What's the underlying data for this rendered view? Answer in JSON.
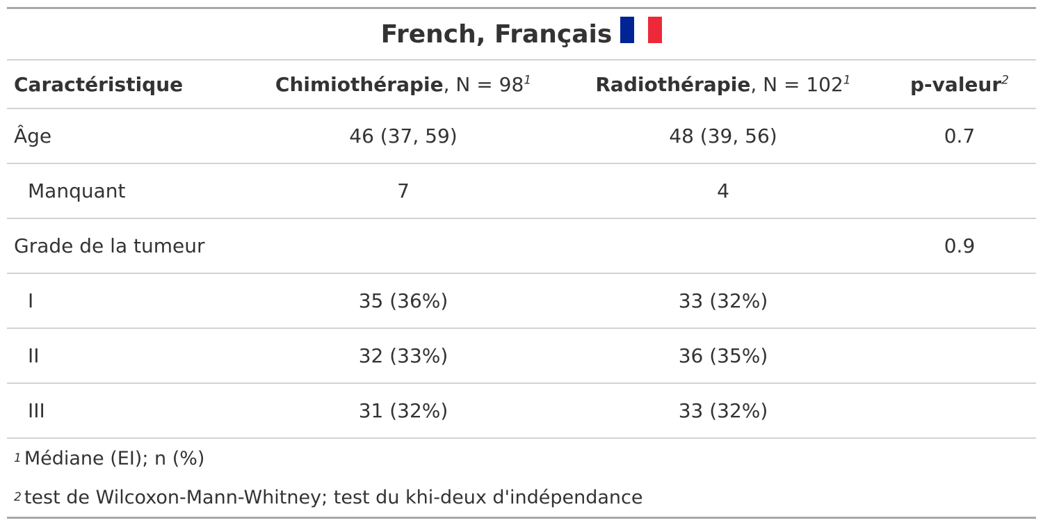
{
  "title": "French, Français",
  "flag": {
    "icon": "french-flag-icon",
    "colors": [
      "#002395",
      "#ffffff",
      "#ed2939"
    ]
  },
  "header": {
    "characteristic": "Caractéristique",
    "col1_name": "Chimiothérapie",
    "col1_n": ", N = 98",
    "col1_mark": "1",
    "col2_name": "Radiothérapie",
    "col2_n": ", N = 102",
    "col2_mark": "1",
    "pvalue": "p-valeur",
    "pvalue_mark": "2"
  },
  "rows": [
    {
      "label": "Âge",
      "c1": "46 (37, 59)",
      "c2": "48 (39, 56)",
      "p": "0.7"
    },
    {
      "label": "Manquant",
      "c1": "7",
      "c2": "4",
      "p": ""
    },
    {
      "label": "Grade de la tumeur",
      "c1": "",
      "c2": "",
      "p": "0.9"
    },
    {
      "label": "I",
      "c1": "35 (36%)",
      "c2": "33 (32%)",
      "p": ""
    },
    {
      "label": "II",
      "c1": "32 (33%)",
      "c2": "36 (35%)",
      "p": ""
    },
    {
      "label": "III",
      "c1": "31 (32%)",
      "c2": "33 (32%)",
      "p": ""
    }
  ],
  "footnotes": [
    {
      "mark": "1",
      "text": "Médiane (EI); n (%)"
    },
    {
      "mark": "2",
      "text": "test de Wilcoxon-Mann-Whitney; test du khi-deux d'indépendance"
    }
  ]
}
